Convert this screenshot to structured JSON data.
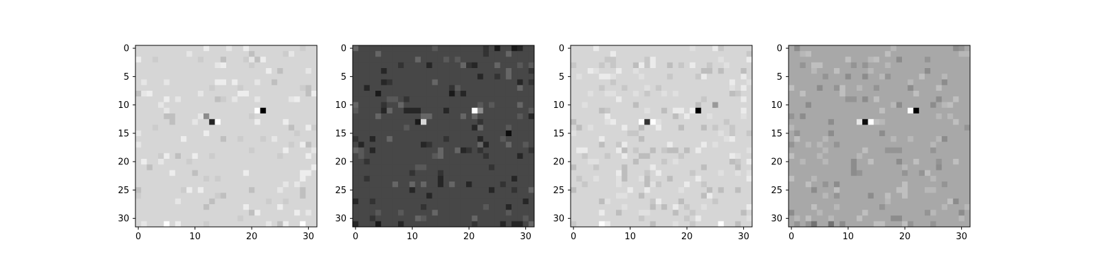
{
  "chart_data": [
    {
      "type": "heatmap",
      "colormap": "gray",
      "grid": false,
      "xlim": [
        -0.5,
        31.5
      ],
      "ylim": [
        31.5,
        -0.5
      ],
      "xticks": [
        0,
        10,
        20,
        30
      ],
      "yticks": [
        0,
        5,
        10,
        15,
        20,
        25,
        30
      ],
      "xtick_labels": [
        "0",
        "10",
        "20",
        "30"
      ],
      "ytick_labels": [
        "0",
        "5",
        "10",
        "15",
        "20",
        "25",
        "30"
      ],
      "background_value": 0.84,
      "noise_values": [
        0.75,
        0.93,
        0.8,
        0.9
      ],
      "noise_density": 0.12,
      "features": [
        {
          "row": 11,
          "col": 22,
          "value": 0.0
        },
        {
          "row": 11,
          "col": 21,
          "value": 1.0
        },
        {
          "row": 13,
          "col": 13,
          "value": 0.15
        },
        {
          "row": 13,
          "col": 14,
          "value": 1.0
        },
        {
          "row": 12,
          "col": 12,
          "value": 0.55
        },
        {
          "row": 6,
          "col": 14,
          "value": 0.93
        },
        {
          "row": 25,
          "col": 9,
          "value": 0.93
        },
        {
          "row": 31,
          "col": 5,
          "value": 1.0
        },
        {
          "row": 31,
          "col": 29,
          "value": 1.0
        }
      ]
    },
    {
      "type": "heatmap",
      "colormap": "gray",
      "grid": false,
      "xlim": [
        -0.5,
        31.5
      ],
      "ylim": [
        31.5,
        -0.5
      ],
      "xticks": [
        0,
        10,
        20,
        30
      ],
      "yticks": [
        0,
        5,
        10,
        15,
        20,
        25,
        30
      ],
      "xtick_labels": [
        "0",
        "10",
        "20",
        "30"
      ],
      "ytick_labels": [
        "0",
        "5",
        "10",
        "15",
        "20",
        "25",
        "30"
      ],
      "background_value": 0.28,
      "noise_values": [
        0.2,
        0.35,
        0.15,
        0.4
      ],
      "noise_density": 0.14,
      "features": [
        {
          "row": 11,
          "col": 21,
          "value": 1.0
        },
        {
          "row": 11,
          "col": 22,
          "value": 0.55
        },
        {
          "row": 13,
          "col": 12,
          "value": 0.85
        },
        {
          "row": 13,
          "col": 11,
          "value": 0.1
        },
        {
          "row": 15,
          "col": 27,
          "value": 0.05
        },
        {
          "row": 8,
          "col": 4,
          "value": 0.1
        },
        {
          "row": 8,
          "col": 17,
          "value": 0.1
        },
        {
          "row": 31,
          "col": 4,
          "value": 0.1
        },
        {
          "row": 0,
          "col": 25,
          "value": 0.1
        },
        {
          "row": 0,
          "col": 28,
          "value": 0.1
        }
      ]
    },
    {
      "type": "heatmap",
      "colormap": "gray",
      "grid": false,
      "xlim": [
        -0.5,
        31.5
      ],
      "ylim": [
        31.5,
        -0.5
      ],
      "xticks": [
        0,
        10,
        20,
        30
      ],
      "yticks": [
        0,
        5,
        10,
        15,
        20,
        25,
        30
      ],
      "xtick_labels": [
        "0",
        "10",
        "20",
        "30"
      ],
      "ytick_labels": [
        "0",
        "5",
        "10",
        "15",
        "20",
        "25",
        "30"
      ],
      "background_value": 0.84,
      "noise_values": [
        0.74,
        0.92,
        0.78,
        0.88
      ],
      "noise_density": 0.22,
      "features": [
        {
          "row": 11,
          "col": 22,
          "value": 0.0
        },
        {
          "row": 11,
          "col": 21,
          "value": 0.95
        },
        {
          "row": 13,
          "col": 13,
          "value": 0.2
        },
        {
          "row": 13,
          "col": 14,
          "value": 1.0
        },
        {
          "row": 13,
          "col": 12,
          "value": 1.0
        },
        {
          "row": 10,
          "col": 25,
          "value": 0.6
        },
        {
          "row": 31,
          "col": 5,
          "value": 1.0
        },
        {
          "row": 31,
          "col": 26,
          "value": 1.0
        }
      ]
    },
    {
      "type": "heatmap",
      "colormap": "gray",
      "grid": false,
      "xlim": [
        -0.5,
        31.5
      ],
      "ylim": [
        31.5,
        -0.5
      ],
      "xticks": [
        0,
        10,
        20,
        30
      ],
      "yticks": [
        0,
        5,
        10,
        15,
        20,
        25,
        30
      ],
      "xtick_labels": [
        "0",
        "10",
        "20",
        "30"
      ],
      "ytick_labels": [
        "0",
        "5",
        "10",
        "15",
        "20",
        "25",
        "30"
      ],
      "background_value": 0.66,
      "noise_values": [
        0.58,
        0.75,
        0.55,
        0.72
      ],
      "noise_density": 0.14,
      "features": [
        {
          "row": 11,
          "col": 22,
          "value": 0.0
        },
        {
          "row": 11,
          "col": 21,
          "value": 1.0
        },
        {
          "row": 13,
          "col": 13,
          "value": 0.05
        },
        {
          "row": 13,
          "col": 14,
          "value": 1.0
        },
        {
          "row": 13,
          "col": 12,
          "value": 0.9
        },
        {
          "row": 31,
          "col": 4,
          "value": 0.45
        },
        {
          "row": 31,
          "col": 7,
          "value": 0.45
        }
      ]
    }
  ]
}
